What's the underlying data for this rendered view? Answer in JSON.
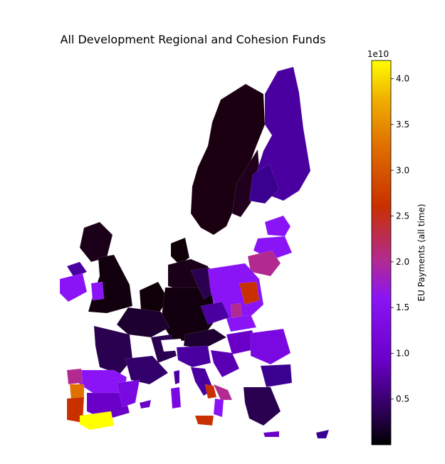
{
  "title": "All Development Regional and Cohesion Funds",
  "colorbar": {
    "label": "EU Payments (all time)",
    "offset_text": "1e10",
    "min": 0,
    "max": 4.2,
    "ticks": [
      "0.5",
      "1.0",
      "1.5",
      "2.0",
      "2.5",
      "3.0",
      "3.5",
      "4.0"
    ],
    "tick_values": [
      0.5,
      1.0,
      1.5,
      2.0,
      2.5,
      3.0,
      3.5,
      4.0
    ],
    "colormap": "gnuplot",
    "colors": {
      "stop_0": "#000000",
      "stop_1": "#2a0050",
      "stop_2": "#6a00c8",
      "stop_3": "#8a14f5",
      "stop_4": "#b22a90",
      "stop_5": "#c83000",
      "stop_6": "#e07000",
      "stop_7": "#f0b000",
      "stop_8": "#ffff00"
    }
  }
}
